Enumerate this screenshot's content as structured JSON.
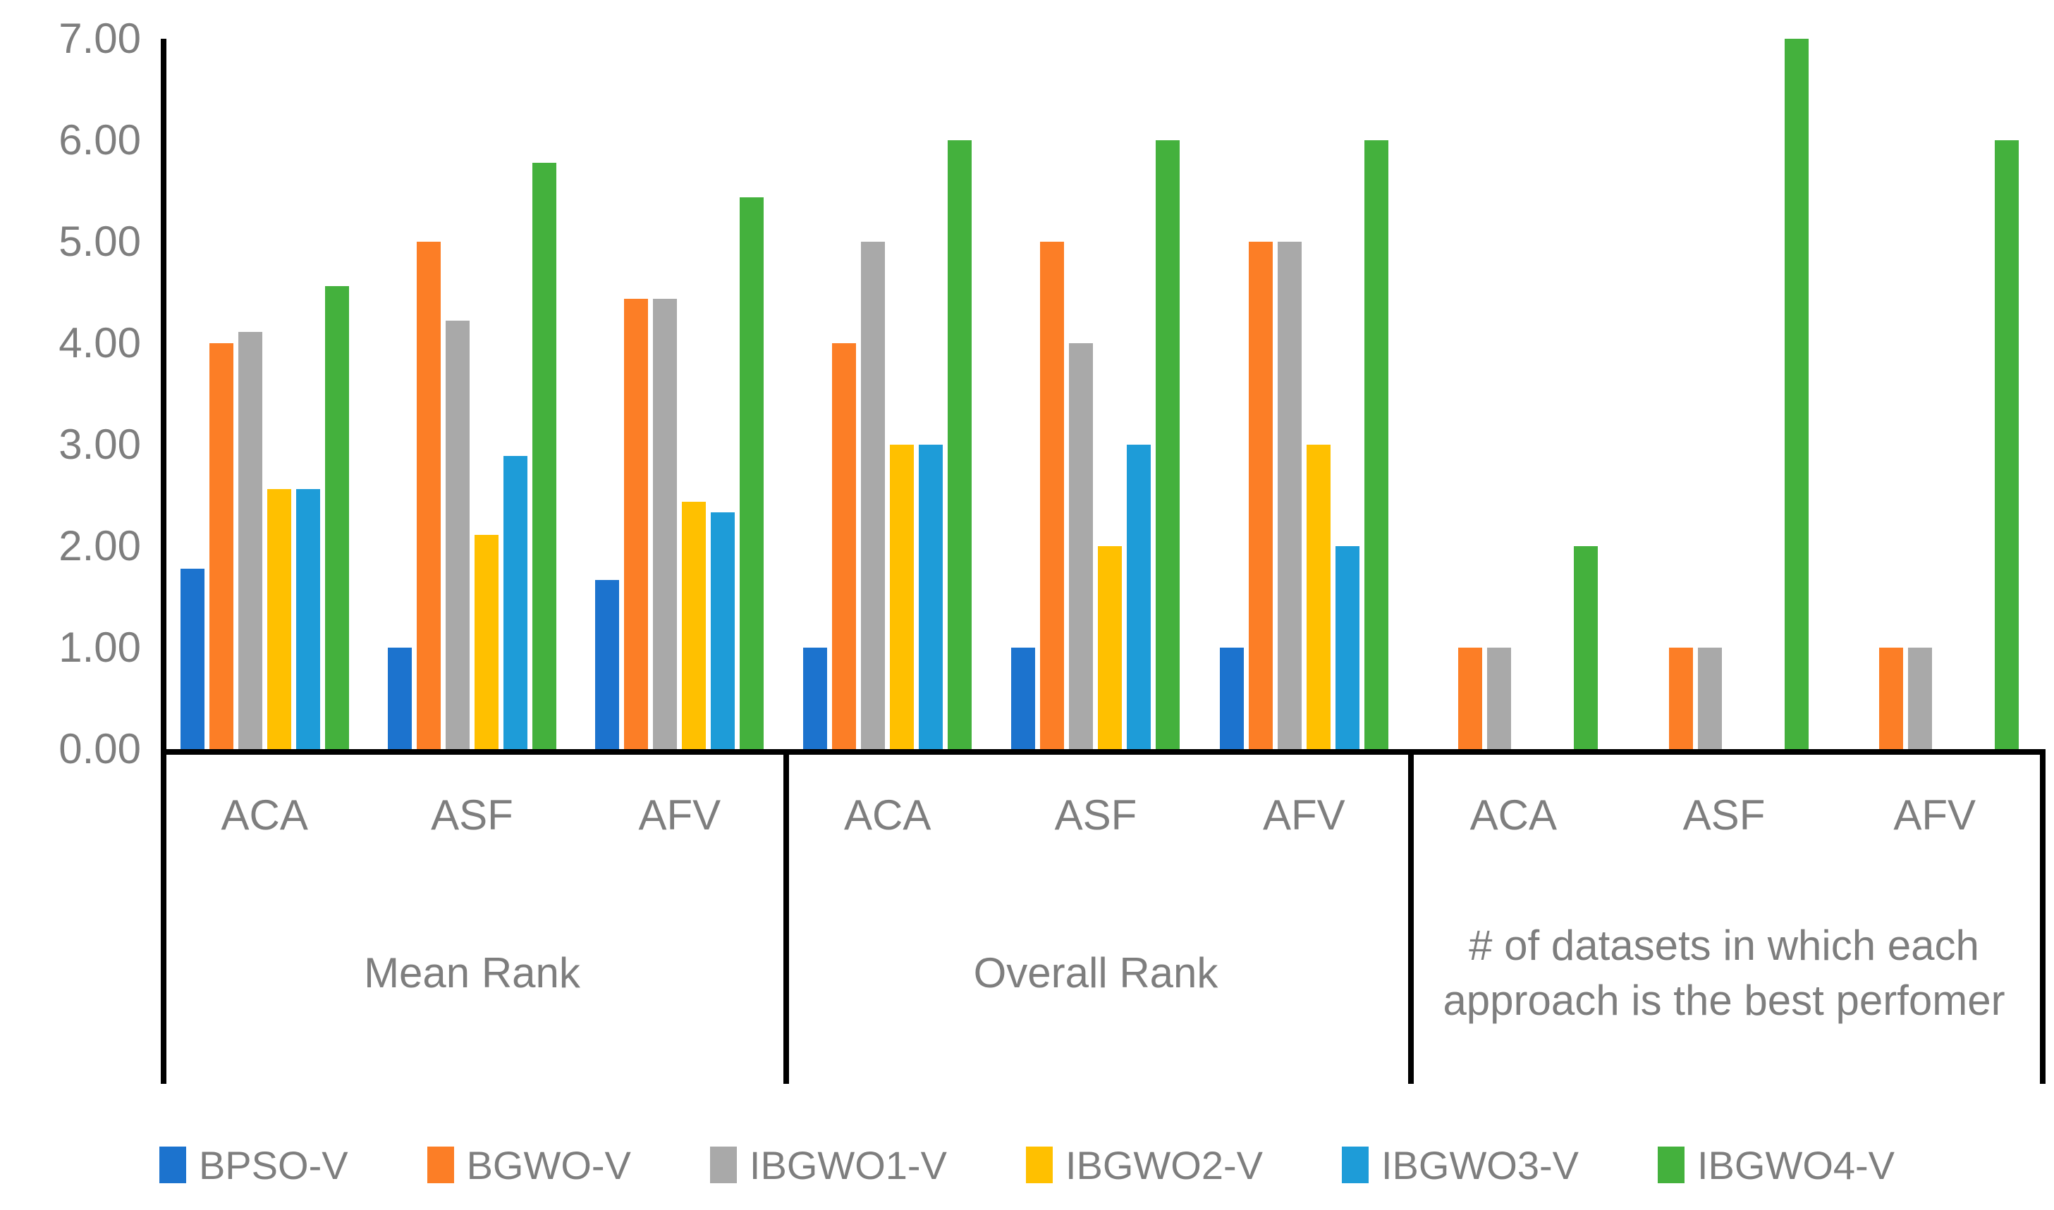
{
  "chart_data": {
    "type": "bar",
    "title": "",
    "xlabel": "",
    "ylabel": "",
    "ylim": [
      0,
      7
    ],
    "grid": false,
    "legend_position": "bottom",
    "ytick_labels": [
      "0.00",
      "1.00",
      "2.00",
      "3.00",
      "4.00",
      "5.00",
      "6.00",
      "7.00"
    ],
    "categories": [
      "ACA",
      "ASF",
      "AFV"
    ],
    "groups": [
      {
        "label": "Mean Rank"
      },
      {
        "label": "Overall Rank"
      },
      {
        "label": "# of datasets in which each approach is the best perfomer"
      }
    ],
    "series": [
      {
        "name": "BPSO-V",
        "color": "#1C73CE",
        "values": [
          [
            1.78,
            1.0,
            1.67
          ],
          [
            1.0,
            1.0,
            1.0
          ],
          [
            0,
            0,
            0
          ]
        ]
      },
      {
        "name": "BGWO-V",
        "color": "#FC7E26",
        "values": [
          [
            4.0,
            5.0,
            4.44
          ],
          [
            4.0,
            5.0,
            5.0
          ],
          [
            1,
            1,
            1
          ]
        ]
      },
      {
        "name": "IBGWO1-V",
        "color": "#A9A9A9",
        "values": [
          [
            4.11,
            4.22,
            4.44
          ],
          [
            5.0,
            4.0,
            5.0
          ],
          [
            1,
            1,
            1
          ]
        ]
      },
      {
        "name": "IBGWO2-V",
        "color": "#FFC000",
        "values": [
          [
            2.56,
            2.11,
            2.44
          ],
          [
            3.0,
            2.0,
            3.0
          ],
          [
            0,
            0,
            0
          ]
        ]
      },
      {
        "name": "IBGWO3-V",
        "color": "#1E9CD8",
        "values": [
          [
            2.56,
            2.89,
            2.33
          ],
          [
            3.0,
            3.0,
            2.0
          ],
          [
            0,
            0,
            0
          ]
        ]
      },
      {
        "name": "IBGWO4-V",
        "color": "#44B13D",
        "values": [
          [
            4.56,
            5.78,
            5.44
          ],
          [
            6.0,
            6.0,
            6.0
          ],
          [
            2,
            7,
            6
          ]
        ]
      }
    ],
    "axis_color": "#000000",
    "label_color": "#7e7e7e"
  }
}
